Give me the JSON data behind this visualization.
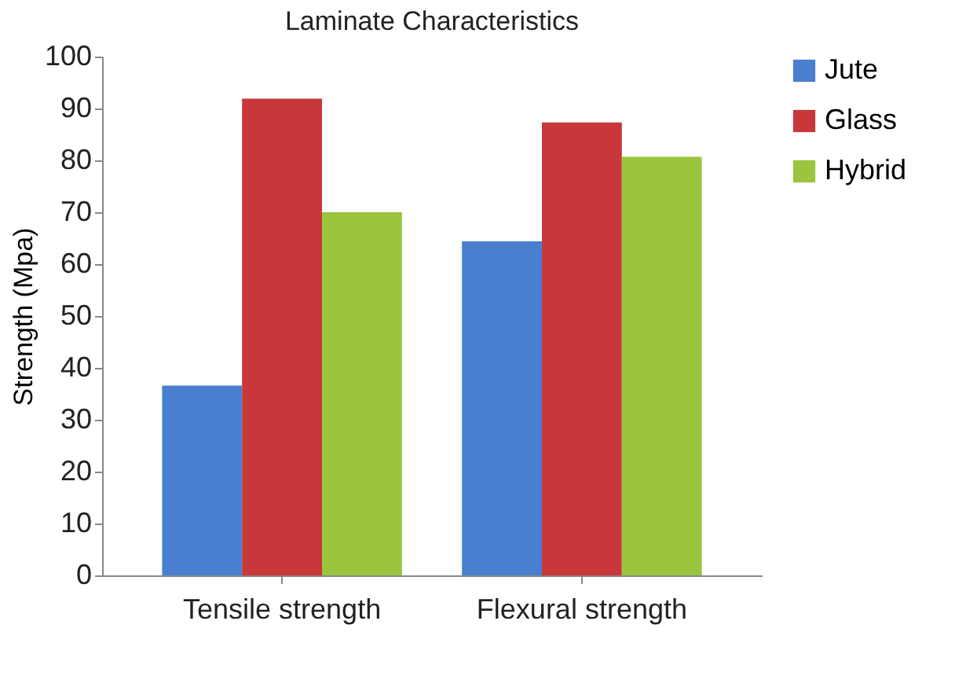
{
  "chart_data": {
    "type": "bar",
    "title": "Laminate Characteristics",
    "ylabel": "Strength (Mpa)",
    "categories": [
      "Tensile strength",
      "Flexural strength"
    ],
    "series": [
      {
        "name": "Jute",
        "color": "#4a7fcf",
        "values": [
          36.6,
          64.4
        ]
      },
      {
        "name": "Glass",
        "color": "#c8383a",
        "values": [
          91.9,
          87.3
        ]
      },
      {
        "name": "Hybrid",
        "color": "#9bc43f",
        "values": [
          70,
          80.7
        ]
      }
    ],
    "ylim": [
      0,
      100
    ],
    "yticks": [
      0,
      10,
      20,
      30,
      40,
      50,
      60,
      70,
      80,
      90,
      100
    ],
    "grid": false,
    "legend": "right"
  }
}
